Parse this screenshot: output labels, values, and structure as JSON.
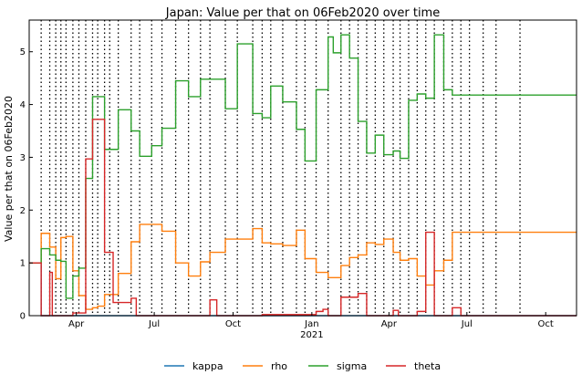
{
  "chart_data": {
    "type": "line",
    "title": "Japan: Value per that on 06Feb2020 over time",
    "ylabel": "Value per that on 06Feb2020",
    "xlabel": "",
    "x_start": "2020-02-06",
    "x_end": "2021-11-06",
    "ylim": [
      0,
      5.6
    ],
    "yticks": [
      0,
      1,
      2,
      3,
      4,
      5
    ],
    "xticks": [
      {
        "date": "2020-04-01",
        "label": "Apr"
      },
      {
        "date": "2020-07-01",
        "label": "Jul"
      },
      {
        "date": "2020-10-01",
        "label": "Oct"
      },
      {
        "date": "2021-01-01",
        "label": "Jan"
      },
      {
        "date": "2021-04-01",
        "label": "Apr"
      },
      {
        "date": "2021-07-01",
        "label": "Jul"
      },
      {
        "date": "2021-10-01",
        "label": "Oct"
      }
    ],
    "year_label": {
      "date": "2021-01-01",
      "label": "2021"
    },
    "vlines": [
      "2020-02-20",
      "2020-03-01",
      "2020-03-08",
      "2020-03-14",
      "2020-03-20",
      "2020-03-28",
      "2020-04-04",
      "2020-04-12",
      "2020-04-20",
      "2020-04-26",
      "2020-05-04",
      "2020-05-10",
      "2020-05-20",
      "2020-06-04",
      "2020-06-14",
      "2020-06-28",
      "2020-07-10",
      "2020-07-26",
      "2020-08-10",
      "2020-08-24",
      "2020-09-04",
      "2020-09-22",
      "2020-10-06",
      "2020-10-24",
      "2020-11-04",
      "2020-11-14",
      "2020-11-28",
      "2020-12-14",
      "2020-12-24",
      "2021-01-06",
      "2021-01-20",
      "2021-02-04",
      "2021-02-14",
      "2021-02-24",
      "2021-03-06",
      "2021-03-16",
      "2021-03-26",
      "2021-04-06",
      "2021-04-14",
      "2021-04-24",
      "2021-05-04",
      "2021-05-14",
      "2021-05-24",
      "2021-06-04",
      "2021-06-14",
      "2021-06-24",
      "2021-07-04",
      "2021-07-20",
      "2021-08-04",
      "2021-09-01"
    ],
    "legend_placement": "bottom",
    "grid": false,
    "series": [
      {
        "name": "kappa",
        "color": "#1f77b4",
        "points": [
          [
            "2020-02-06",
            1.0
          ],
          [
            "2020-02-20",
            1.0
          ],
          [
            "2020-02-20",
            0.0
          ],
          [
            "2021-11-06",
            0.0
          ]
        ]
      },
      {
        "name": "rho",
        "color": "#ff7f0e",
        "points": [
          [
            "2020-02-06",
            1.0
          ],
          [
            "2020-02-20",
            1.0
          ],
          [
            "2020-02-20",
            1.56
          ],
          [
            "2020-03-01",
            1.56
          ],
          [
            "2020-03-01",
            1.3
          ],
          [
            "2020-03-08",
            1.3
          ],
          [
            "2020-03-08",
            0.7
          ],
          [
            "2020-03-14",
            0.7
          ],
          [
            "2020-03-14",
            1.48
          ],
          [
            "2020-03-20",
            1.48
          ],
          [
            "2020-03-20",
            1.5
          ],
          [
            "2020-03-28",
            1.5
          ],
          [
            "2020-03-28",
            0.85
          ],
          [
            "2020-04-04",
            0.85
          ],
          [
            "2020-04-04",
            0.38
          ],
          [
            "2020-04-12",
            0.38
          ],
          [
            "2020-04-12",
            0.12
          ],
          [
            "2020-04-20",
            0.12
          ],
          [
            "2020-04-20",
            0.15
          ],
          [
            "2020-04-26",
            0.15
          ],
          [
            "2020-04-26",
            0.18
          ],
          [
            "2020-05-04",
            0.18
          ],
          [
            "2020-05-04",
            0.4
          ],
          [
            "2020-05-20",
            0.4
          ],
          [
            "2020-05-20",
            0.8
          ],
          [
            "2020-06-04",
            0.8
          ],
          [
            "2020-06-04",
            1.4
          ],
          [
            "2020-06-14",
            1.4
          ],
          [
            "2020-06-14",
            1.73
          ],
          [
            "2020-07-10",
            1.73
          ],
          [
            "2020-07-10",
            1.6
          ],
          [
            "2020-07-26",
            1.6
          ],
          [
            "2020-07-26",
            1.0
          ],
          [
            "2020-08-10",
            1.0
          ],
          [
            "2020-08-10",
            0.75
          ],
          [
            "2020-08-24",
            0.75
          ],
          [
            "2020-08-24",
            1.02
          ],
          [
            "2020-09-04",
            1.02
          ],
          [
            "2020-09-04",
            1.2
          ],
          [
            "2020-09-22",
            1.2
          ],
          [
            "2020-09-22",
            1.45
          ],
          [
            "2020-10-06",
            1.45
          ],
          [
            "2020-10-06",
            1.45
          ],
          [
            "2020-10-24",
            1.45
          ],
          [
            "2020-10-24",
            1.65
          ],
          [
            "2020-11-04",
            1.65
          ],
          [
            "2020-11-04",
            1.38
          ],
          [
            "2020-11-14",
            1.38
          ],
          [
            "2020-11-14",
            1.36
          ],
          [
            "2020-11-28",
            1.36
          ],
          [
            "2020-11-28",
            1.33
          ],
          [
            "2020-12-14",
            1.33
          ],
          [
            "2020-12-14",
            1.62
          ],
          [
            "2020-12-24",
            1.62
          ],
          [
            "2020-12-24",
            1.08
          ],
          [
            "2021-01-06",
            1.08
          ],
          [
            "2021-01-06",
            0.82
          ],
          [
            "2021-01-20",
            0.82
          ],
          [
            "2021-01-20",
            0.72
          ],
          [
            "2021-02-04",
            0.72
          ],
          [
            "2021-02-04",
            0.95
          ],
          [
            "2021-02-14",
            0.95
          ],
          [
            "2021-02-14",
            1.1
          ],
          [
            "2021-02-24",
            1.1
          ],
          [
            "2021-02-24",
            1.15
          ],
          [
            "2021-03-06",
            1.15
          ],
          [
            "2021-03-06",
            1.38
          ],
          [
            "2021-03-16",
            1.38
          ],
          [
            "2021-03-16",
            1.35
          ],
          [
            "2021-03-26",
            1.35
          ],
          [
            "2021-03-26",
            1.45
          ],
          [
            "2021-04-06",
            1.45
          ],
          [
            "2021-04-06",
            1.2
          ],
          [
            "2021-04-14",
            1.2
          ],
          [
            "2021-04-14",
            1.05
          ],
          [
            "2021-04-24",
            1.05
          ],
          [
            "2021-04-24",
            1.08
          ],
          [
            "2021-05-04",
            1.08
          ],
          [
            "2021-05-04",
            0.75
          ],
          [
            "2021-05-14",
            0.75
          ],
          [
            "2021-05-14",
            0.58
          ],
          [
            "2021-05-24",
            0.58
          ],
          [
            "2021-05-24",
            0.85
          ],
          [
            "2021-06-04",
            0.85
          ],
          [
            "2021-06-04",
            1.05
          ],
          [
            "2021-06-14",
            1.05
          ],
          [
            "2021-06-14",
            1.58
          ],
          [
            "2021-07-04",
            1.58
          ],
          [
            "2021-09-01",
            1.58
          ],
          [
            "2021-11-06",
            1.58
          ]
        ]
      },
      {
        "name": "sigma",
        "color": "#2ca02c",
        "points": [
          [
            "2020-02-06",
            1.0
          ],
          [
            "2020-02-20",
            1.0
          ],
          [
            "2020-02-20",
            1.27
          ],
          [
            "2020-03-01",
            1.27
          ],
          [
            "2020-03-01",
            1.15
          ],
          [
            "2020-03-08",
            1.15
          ],
          [
            "2020-03-08",
            1.05
          ],
          [
            "2020-03-14",
            1.05
          ],
          [
            "2020-03-14",
            1.03
          ],
          [
            "2020-03-20",
            1.03
          ],
          [
            "2020-03-20",
            0.33
          ],
          [
            "2020-03-28",
            0.33
          ],
          [
            "2020-03-28",
            0.75
          ],
          [
            "2020-04-04",
            0.75
          ],
          [
            "2020-04-04",
            0.9
          ],
          [
            "2020-04-12",
            0.9
          ],
          [
            "2020-04-12",
            2.6
          ],
          [
            "2020-04-20",
            2.6
          ],
          [
            "2020-04-20",
            4.15
          ],
          [
            "2020-05-04",
            4.15
          ],
          [
            "2020-05-04",
            3.15
          ],
          [
            "2020-05-20",
            3.15
          ],
          [
            "2020-05-20",
            3.9
          ],
          [
            "2020-06-04",
            3.9
          ],
          [
            "2020-06-04",
            3.5
          ],
          [
            "2020-06-14",
            3.5
          ],
          [
            "2020-06-14",
            3.02
          ],
          [
            "2020-06-28",
            3.02
          ],
          [
            "2020-06-28",
            3.22
          ],
          [
            "2020-07-10",
            3.22
          ],
          [
            "2020-07-10",
            3.55
          ],
          [
            "2020-07-26",
            3.55
          ],
          [
            "2020-07-26",
            4.45
          ],
          [
            "2020-08-10",
            4.45
          ],
          [
            "2020-08-10",
            4.15
          ],
          [
            "2020-08-24",
            4.15
          ],
          [
            "2020-08-24",
            4.48
          ],
          [
            "2020-09-22",
            4.48
          ],
          [
            "2020-09-22",
            3.92
          ],
          [
            "2020-10-06",
            3.92
          ],
          [
            "2020-10-06",
            5.15
          ],
          [
            "2020-10-24",
            5.15
          ],
          [
            "2020-10-24",
            3.83
          ],
          [
            "2020-11-04",
            3.83
          ],
          [
            "2020-11-04",
            3.75
          ],
          [
            "2020-11-14",
            3.75
          ],
          [
            "2020-11-14",
            4.35
          ],
          [
            "2020-11-28",
            4.35
          ],
          [
            "2020-11-28",
            4.05
          ],
          [
            "2020-12-14",
            4.05
          ],
          [
            "2020-12-14",
            3.53
          ],
          [
            "2020-12-24",
            3.53
          ],
          [
            "2020-12-24",
            2.93
          ],
          [
            "2021-01-06",
            2.93
          ],
          [
            "2021-01-06",
            4.28
          ],
          [
            "2021-01-20",
            4.28
          ],
          [
            "2021-01-20",
            5.28
          ],
          [
            "2021-01-26",
            5.28
          ],
          [
            "2021-01-26",
            4.98
          ],
          [
            "2021-02-04",
            4.98
          ],
          [
            "2021-02-04",
            5.32
          ],
          [
            "2021-02-14",
            5.32
          ],
          [
            "2021-02-14",
            4.88
          ],
          [
            "2021-02-24",
            4.88
          ],
          [
            "2021-02-24",
            3.68
          ],
          [
            "2021-03-06",
            3.68
          ],
          [
            "2021-03-06",
            3.08
          ],
          [
            "2021-03-16",
            3.08
          ],
          [
            "2021-03-16",
            3.42
          ],
          [
            "2021-03-26",
            3.42
          ],
          [
            "2021-03-26",
            3.05
          ],
          [
            "2021-04-06",
            3.05
          ],
          [
            "2021-04-06",
            3.12
          ],
          [
            "2021-04-14",
            3.12
          ],
          [
            "2021-04-14",
            2.98
          ],
          [
            "2021-04-24",
            2.98
          ],
          [
            "2021-04-24",
            4.08
          ],
          [
            "2021-05-04",
            4.08
          ],
          [
            "2021-05-04",
            4.2
          ],
          [
            "2021-05-14",
            4.2
          ],
          [
            "2021-05-14",
            4.12
          ],
          [
            "2021-05-24",
            4.12
          ],
          [
            "2021-05-24",
            5.32
          ],
          [
            "2021-06-04",
            5.32
          ],
          [
            "2021-06-04",
            4.28
          ],
          [
            "2021-06-14",
            4.28
          ],
          [
            "2021-06-14",
            4.18
          ],
          [
            "2021-09-01",
            4.18
          ],
          [
            "2021-11-06",
            4.18
          ]
        ]
      },
      {
        "name": "theta",
        "color": "#d62728",
        "points": [
          [
            "2020-02-06",
            1.0
          ],
          [
            "2020-02-20",
            1.0
          ],
          [
            "2020-02-20",
            0.0
          ],
          [
            "2020-03-01",
            0.0
          ],
          [
            "2020-03-01",
            0.82
          ],
          [
            "2020-03-04",
            0.82
          ],
          [
            "2020-03-04",
            0.0
          ],
          [
            "2020-03-28",
            0.0
          ],
          [
            "2020-03-28",
            0.05
          ],
          [
            "2020-04-04",
            0.05
          ],
          [
            "2020-04-04",
            0.05
          ],
          [
            "2020-04-12",
            0.05
          ],
          [
            "2020-04-12",
            2.97
          ],
          [
            "2020-04-20",
            2.97
          ],
          [
            "2020-04-20",
            3.72
          ],
          [
            "2020-05-04",
            3.72
          ],
          [
            "2020-05-04",
            1.2
          ],
          [
            "2020-05-14",
            1.2
          ],
          [
            "2020-05-14",
            0.25
          ],
          [
            "2020-06-04",
            0.25
          ],
          [
            "2020-06-04",
            0.33
          ],
          [
            "2020-06-10",
            0.33
          ],
          [
            "2020-06-10",
            0.0
          ],
          [
            "2020-09-04",
            0.0
          ],
          [
            "2020-09-04",
            0.3
          ],
          [
            "2020-09-12",
            0.3
          ],
          [
            "2020-09-12",
            0.0
          ],
          [
            "2020-11-04",
            0.0
          ],
          [
            "2020-11-04",
            0.02
          ],
          [
            "2021-01-06",
            0.02
          ],
          [
            "2021-01-06",
            0.08
          ],
          [
            "2021-01-14",
            0.08
          ],
          [
            "2021-01-14",
            0.12
          ],
          [
            "2021-01-20",
            0.12
          ],
          [
            "2021-01-20",
            0.0
          ],
          [
            "2021-02-04",
            0.0
          ],
          [
            "2021-02-04",
            0.35
          ],
          [
            "2021-02-24",
            0.35
          ],
          [
            "2021-02-24",
            0.42
          ],
          [
            "2021-03-06",
            0.42
          ],
          [
            "2021-03-06",
            0.0
          ],
          [
            "2021-04-06",
            0.0
          ],
          [
            "2021-04-06",
            0.1
          ],
          [
            "2021-04-12",
            0.1
          ],
          [
            "2021-04-12",
            0.0
          ],
          [
            "2021-05-04",
            0.0
          ],
          [
            "2021-05-04",
            0.08
          ],
          [
            "2021-05-14",
            0.08
          ],
          [
            "2021-05-14",
            1.58
          ],
          [
            "2021-05-24",
            1.58
          ],
          [
            "2021-05-24",
            0.0
          ],
          [
            "2021-06-14",
            0.0
          ],
          [
            "2021-06-14",
            0.15
          ],
          [
            "2021-06-24",
            0.15
          ],
          [
            "2021-06-24",
            0.0
          ],
          [
            "2021-11-06",
            0.0
          ]
        ]
      }
    ]
  }
}
